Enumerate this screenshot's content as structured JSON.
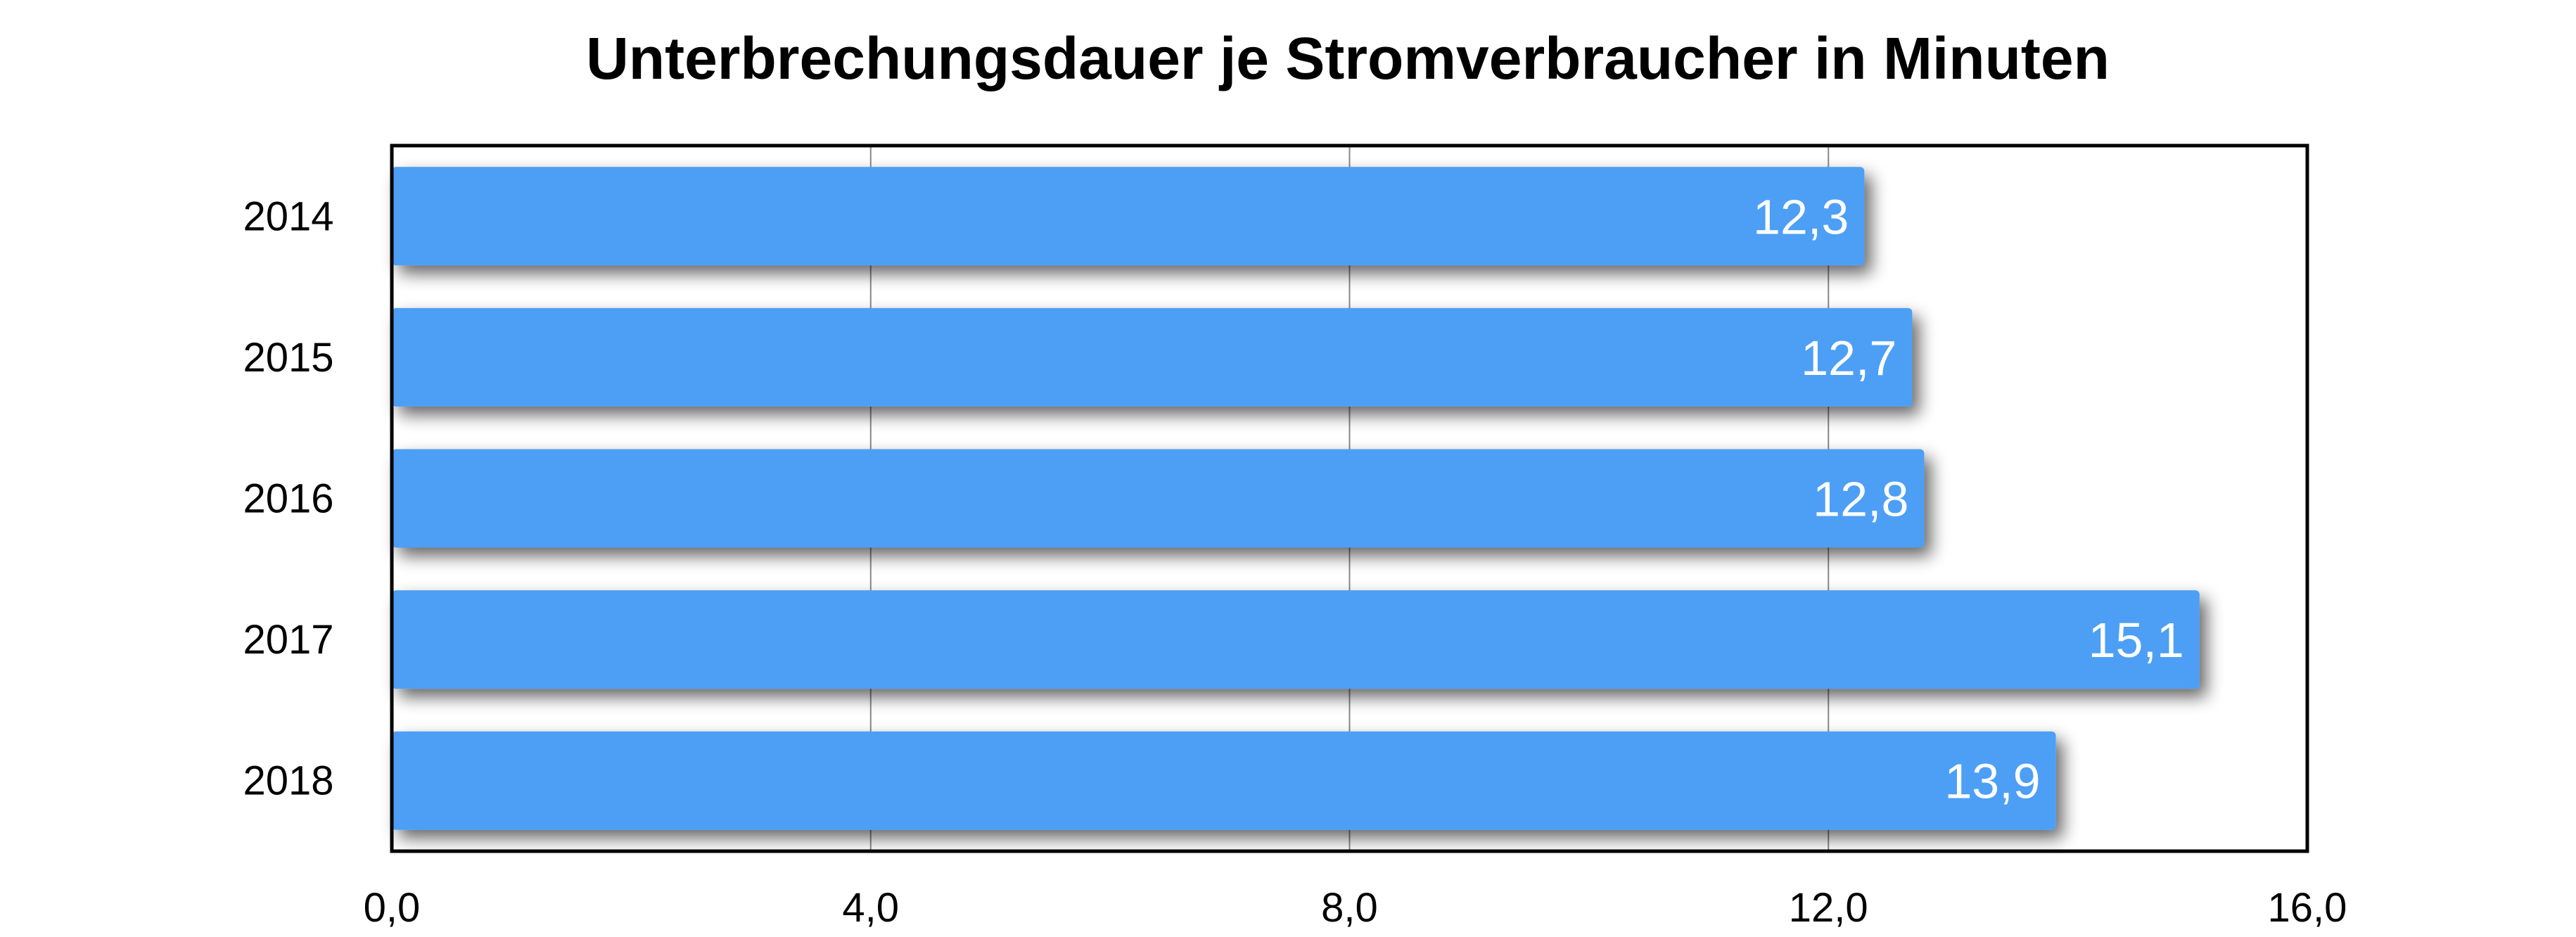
{
  "chart_data": {
    "type": "bar",
    "orientation": "horizontal",
    "title": "Unterbrechungsdauer je Stromverbraucher in Minuten",
    "categories": [
      "2014",
      "2015",
      "2016",
      "2017",
      "2018"
    ],
    "values": [
      12.3,
      12.7,
      12.8,
      15.1,
      13.9
    ],
    "value_labels": [
      "12,3",
      "12,7",
      "12,8",
      "15,1",
      "13,9"
    ],
    "xlim": [
      0,
      16
    ],
    "x_ticks": [
      0,
      4,
      8,
      12,
      16
    ],
    "x_tick_labels": [
      "0,0",
      "4,0",
      "8,0",
      "12,0",
      "16,0"
    ],
    "xlabel": "",
    "ylabel": "",
    "grid": true,
    "legend": "none",
    "bar_color": "#4d9ff5",
    "grid_color": "#888888",
    "frame_color": "#000000"
  }
}
